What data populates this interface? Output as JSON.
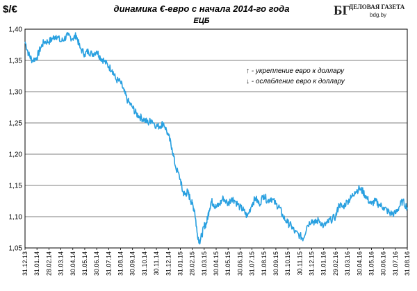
{
  "chart_data": {
    "type": "line",
    "ylabel": "$/€",
    "title": "динамика €-евро с начала 2014-го года",
    "subtitle": "ЕЦБ",
    "ylim": [
      1.05,
      1.4
    ],
    "yticks": [
      "1,05",
      "1,10",
      "1,15",
      "1,20",
      "1,25",
      "1,30",
      "1,35",
      "1,40"
    ],
    "ytick_values": [
      1.05,
      1.1,
      1.15,
      1.2,
      1.25,
      1.3,
      1.35,
      1.4
    ],
    "xticks": [
      "31.12.13",
      "31.01.14",
      "28.02.14",
      "31.03.14",
      "30.04.14",
      "31.05.14",
      "30.06.14",
      "31.07.14",
      "31.08.14",
      "30.09.14",
      "31.10.14",
      "30.11.14",
      "31.12.14",
      "31.01.15",
      "28.02.15",
      "31.03.15",
      "30.04.15",
      "31.05.15",
      "30.06.15",
      "31.07.15",
      "31.08.15",
      "30.09.15",
      "31.10.15",
      "30.11.15",
      "31.12.15",
      "31.01.16",
      "29.02.16",
      "31.03.16",
      "30.04.16",
      "31.05.16",
      "30.06.16",
      "31.07.16",
      "31.08.16"
    ],
    "legend": [
      {
        "arrow": "↑",
        "text": " - укрепление евро к доллару"
      },
      {
        "arrow": "↓",
        "text": " - ослабление евро к доллару"
      }
    ],
    "grid": true,
    "line_color": "#29a0e0",
    "series": [
      {
        "x_index": [
          0,
          0.3,
          0.6,
          1,
          1.3,
          1.6,
          2,
          2.3,
          2.6,
          3,
          3.3,
          3.6,
          4,
          4.3,
          4.6,
          5,
          5.3,
          5.6,
          6,
          6.3,
          6.6,
          7,
          7.3,
          7.6,
          8,
          8.3,
          8.6,
          9,
          9.3,
          9.6,
          10,
          10.3,
          10.6,
          11,
          11.3,
          11.6,
          12,
          12.3,
          12.6,
          13,
          13.2,
          13.4,
          13.6,
          13.8,
          14,
          14.2,
          14.4,
          14.6,
          14.8,
          15,
          15.2,
          15.4,
          15.6,
          15.8,
          16,
          16.3,
          16.6,
          17,
          17.3,
          17.6,
          18,
          18.3,
          18.6,
          19,
          19.3,
          19.6,
          20,
          20.3,
          20.6,
          21,
          21.3,
          21.6,
          22,
          22.3,
          22.6,
          23,
          23.3,
          23.6,
          24,
          24.3,
          24.6,
          25,
          25.3,
          25.6,
          26,
          26.3,
          26.6,
          27,
          27.3,
          27.6,
          28,
          28.3,
          28.6,
          29,
          29.3,
          29.6,
          30,
          30.3,
          30.6,
          31,
          31.3,
          31.6,
          32
        ],
        "values": [
          1.38,
          1.36,
          1.35,
          1.355,
          1.37,
          1.38,
          1.38,
          1.385,
          1.39,
          1.38,
          1.385,
          1.39,
          1.385,
          1.39,
          1.37,
          1.36,
          1.365,
          1.36,
          1.365,
          1.355,
          1.35,
          1.34,
          1.335,
          1.32,
          1.315,
          1.3,
          1.285,
          1.275,
          1.265,
          1.26,
          1.255,
          1.25,
          1.255,
          1.245,
          1.245,
          1.25,
          1.23,
          1.21,
          1.18,
          1.16,
          1.14,
          1.135,
          1.14,
          1.13,
          1.12,
          1.11,
          1.075,
          1.06,
          1.07,
          1.085,
          1.09,
          1.11,
          1.125,
          1.12,
          1.115,
          1.12,
          1.13,
          1.12,
          1.13,
          1.125,
          1.115,
          1.11,
          1.1,
          1.12,
          1.13,
          1.12,
          1.135,
          1.125,
          1.13,
          1.12,
          1.115,
          1.1,
          1.09,
          1.085,
          1.075,
          1.07,
          1.065,
          1.085,
          1.095,
          1.09,
          1.095,
          1.085,
          1.09,
          1.095,
          1.1,
          1.12,
          1.115,
          1.125,
          1.13,
          1.14,
          1.145,
          1.14,
          1.13,
          1.12,
          1.125,
          1.12,
          1.115,
          1.11,
          1.105,
          1.105,
          1.115,
          1.125,
          1.115
        ]
      }
    ]
  },
  "logo": {
    "mark": "БГ",
    "name": "ДЕЛОВАЯ ГАЗЕТА",
    "url": "bdg.by"
  }
}
